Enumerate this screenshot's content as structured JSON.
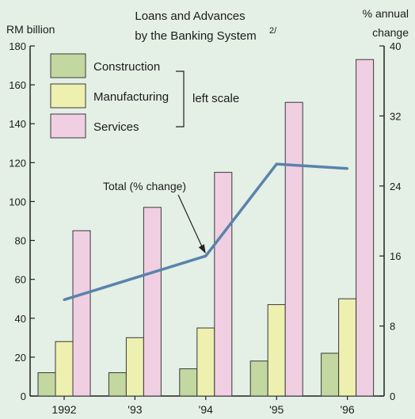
{
  "chart_data": {
    "type": "bar",
    "title": "Loans and Advances",
    "title_line2": "by the Banking System",
    "title_footnote": "2/",
    "left_axis_title": "RM billion",
    "right_axis_title_line1": "% annual",
    "right_axis_title_line2": "change",
    "categories": [
      "1992",
      "'93",
      "'94",
      "'95",
      "'96"
    ],
    "ylim": [
      0,
      180
    ],
    "y_ticks": [
      0,
      20,
      40,
      60,
      80,
      100,
      120,
      140,
      160,
      180
    ],
    "y2lim": [
      0,
      40
    ],
    "y2_ticks": [
      0,
      8,
      16,
      24,
      32,
      40
    ],
    "grid": false,
    "legend_position": "top-left",
    "legend_scale_note": "left scale",
    "series": [
      {
        "name": "Construction",
        "axis": "left",
        "kind": "bar",
        "color": "#c2d8a0",
        "values": [
          12,
          12,
          14,
          18,
          22
        ]
      },
      {
        "name": "Manufacturing",
        "axis": "left",
        "kind": "bar",
        "color": "#eef0b0",
        "values": [
          28,
          30,
          35,
          47,
          50
        ]
      },
      {
        "name": "Services",
        "axis": "left",
        "kind": "bar",
        "color": "#f0cfe3",
        "values": [
          85,
          97,
          115,
          151,
          173
        ]
      },
      {
        "name": "Total (% change)",
        "axis": "right",
        "kind": "line",
        "color": "#5a83ab",
        "values": [
          11,
          13.5,
          16,
          26.5,
          26
        ]
      }
    ],
    "annotation": "Total (% change)"
  }
}
